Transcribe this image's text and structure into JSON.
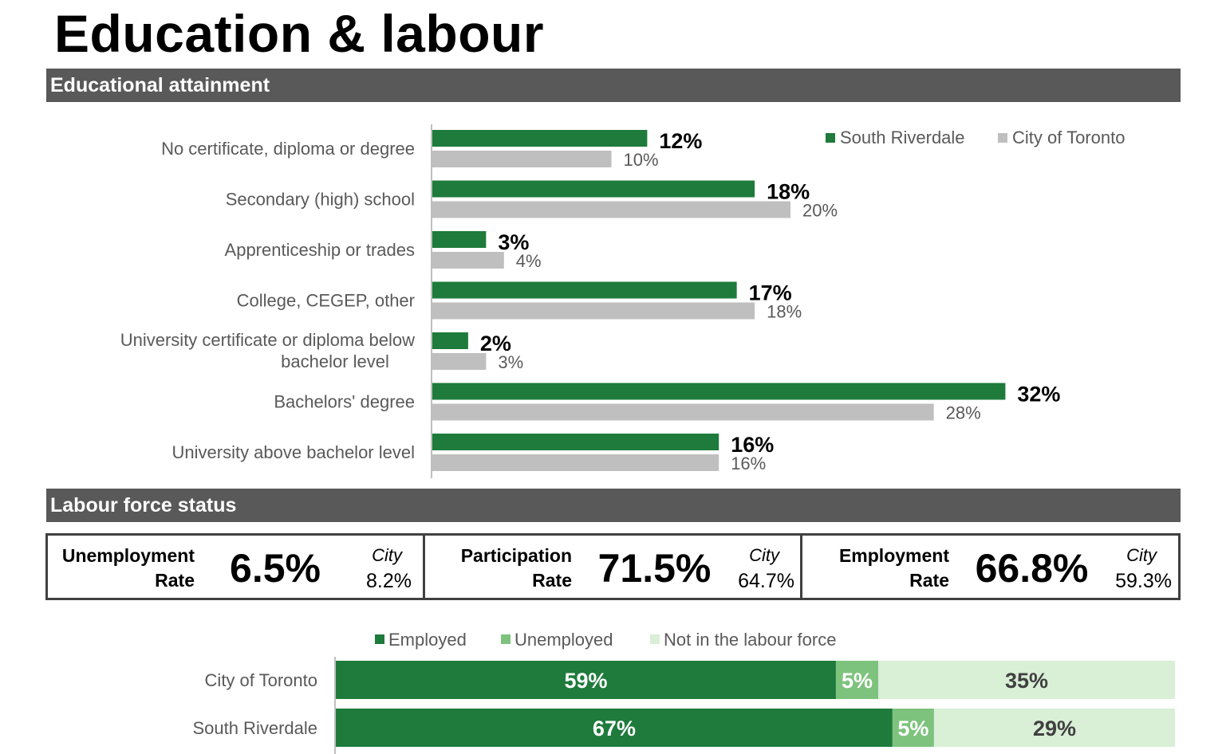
{
  "page_title": "Education & labour",
  "sections": {
    "education": "Educational attainment",
    "labour": "Labour force status"
  },
  "colors": {
    "south_riverdale": "#1e7b3b",
    "city_of_toronto": "#bfbfbf",
    "employed": "#1e7b3b",
    "unemployed": "#7dc37d",
    "not_in_labour_force": "#d9efd6",
    "section_bar": "#595959"
  },
  "chart_data": [
    {
      "type": "bar",
      "orientation": "horizontal",
      "categories": [
        [
          "No certificate, diploma or degree"
        ],
        [
          "Secondary (high) school"
        ],
        [
          "Apprenticeship or trades"
        ],
        [
          "College, CEGEP, other"
        ],
        [
          "University certificate or diploma below",
          "bachelor level"
        ],
        [
          "Bachelors' degree"
        ],
        [
          "University above bachelor level"
        ]
      ],
      "series": [
        {
          "name": "South Riverdale",
          "values": [
            12,
            18,
            3,
            17,
            2,
            32,
            16
          ],
          "labels": [
            "12%",
            "18%",
            "3%",
            "17%",
            "2%",
            "32%",
            "16%"
          ]
        },
        {
          "name": "City of Toronto",
          "values": [
            10,
            20,
            4,
            18,
            3,
            28,
            16
          ],
          "labels": [
            "10%",
            "20%",
            "4%",
            "18%",
            "3%",
            "28%",
            "16%"
          ]
        }
      ],
      "xlim": [
        0,
        40
      ],
      "legend_position": "top-right",
      "grid": false
    },
    {
      "type": "bar",
      "orientation": "horizontal",
      "stacked": true,
      "categories": [
        "City of Toronto",
        "South Riverdale"
      ],
      "series": [
        {
          "name": "Employed",
          "values": [
            59,
            67
          ],
          "labels": [
            "59%",
            "67%"
          ]
        },
        {
          "name": "Unemployed",
          "values": [
            5,
            5
          ],
          "labels": [
            "5%",
            "5%"
          ]
        },
        {
          "name": "Not in the labour force",
          "values": [
            35,
            29
          ],
          "labels": [
            "35%",
            "29%"
          ]
        }
      ],
      "legend_position": "top",
      "grid": false
    }
  ],
  "labour_stats": [
    {
      "name_line1": "Unemployment",
      "name_line2": "Rate",
      "value": "6.5%",
      "city_label": "City",
      "city_value": "8.2%"
    },
    {
      "name_line1": "Participation",
      "name_line2": "Rate",
      "value": "71.5%",
      "city_label": "City",
      "city_value": "64.7%"
    },
    {
      "name_line1": "Employment",
      "name_line2": "Rate",
      "value": "66.8%",
      "city_label": "City",
      "city_value": "59.3%"
    }
  ]
}
